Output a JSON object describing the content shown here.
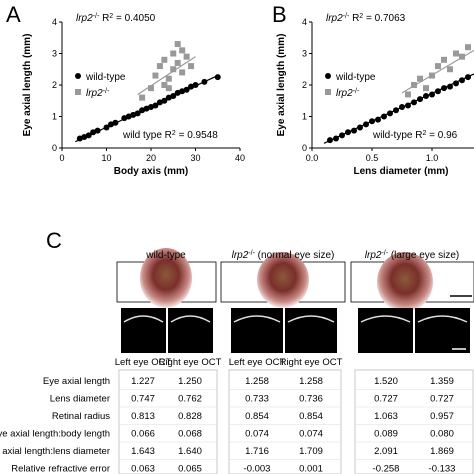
{
  "chart_data": [
    {
      "type": "scatter",
      "panel": "A",
      "xlabel": "Body axis (mm)",
      "ylabel": "Eye axial length (mm)",
      "xlim": [
        0,
        40
      ],
      "xticks": [
        0,
        10,
        20,
        30,
        40
      ],
      "ylim": [
        0,
        4
      ],
      "yticks": [
        0,
        1,
        2,
        3,
        4
      ],
      "series": [
        {
          "name": "wild-type",
          "color": "#000000",
          "marker": "circle",
          "x": [
            4,
            5,
            6,
            7,
            8,
            10,
            11,
            12,
            14,
            15,
            16,
            17,
            18,
            19,
            20,
            21,
            22,
            23,
            24,
            25,
            26,
            27,
            28,
            29,
            30,
            32,
            35
          ],
          "values": [
            0.3,
            0.35,
            0.4,
            0.5,
            0.55,
            0.65,
            0.75,
            0.8,
            0.95,
            1.0,
            1.05,
            1.1,
            1.2,
            1.25,
            1.3,
            1.35,
            1.45,
            1.5,
            1.6,
            1.65,
            1.75,
            1.8,
            1.85,
            1.95,
            2.0,
            2.1,
            2.25
          ]
        },
        {
          "name": "lrp2",
          "name_sup": "-/-",
          "color": "#999999",
          "marker": "square",
          "x": [
            18,
            20,
            21,
            22,
            23,
            23,
            24,
            25,
            25,
            26,
            26,
            27,
            27,
            28,
            29,
            24
          ],
          "values": [
            1.6,
            1.9,
            2.3,
            2.6,
            2.0,
            2.8,
            2.2,
            3.0,
            2.5,
            3.3,
            2.7,
            2.4,
            3.1,
            2.9,
            2.6,
            1.9
          ]
        }
      ],
      "trend_lines": [
        {
          "color": "#000000",
          "x": [
            3,
            35
          ],
          "y": [
            0.2,
            2.3
          ]
        },
        {
          "color": "#999999",
          "x": [
            17,
            30
          ],
          "y": [
            1.7,
            2.9
          ]
        }
      ],
      "annotations": [
        {
          "color": "#999999",
          "segments": [
            {
              "t": "lrp2",
              "italic": true
            },
            {
              "t": "-/-",
              "sup": true
            },
            {
              "t": " R"
            },
            {
              "t": "2",
              "sup": true
            },
            {
              "t": " = 0.4050"
            }
          ]
        },
        {
          "color": "#000000",
          "segments": [
            {
              "t": "wild type R"
            },
            {
              "t": "2",
              "sup": true
            },
            {
              "t": " = 0.9548"
            }
          ]
        }
      ]
    },
    {
      "type": "scatter",
      "panel": "B",
      "xlabel": "Lens diameter (mm)",
      "ylabel": "Eye axial length (mm)",
      "xlim": [
        0,
        1.35
      ],
      "xticks": [
        {
          "value": 0,
          "label": "0.0"
        },
        {
          "value": 0.5,
          "label": "0.5"
        },
        {
          "value": 1,
          "label": "1.0"
        }
      ],
      "ylim": [
        0,
        4
      ],
      "yticks": [
        0,
        1,
        2,
        3,
        4
      ],
      "series": [
        {
          "name": "wild-type",
          "color": "#000000",
          "marker": "circle",
          "x": [
            0.15,
            0.2,
            0.25,
            0.3,
            0.35,
            0.4,
            0.45,
            0.5,
            0.55,
            0.6,
            0.65,
            0.7,
            0.75,
            0.8,
            0.85,
            0.9,
            0.95,
            1.0,
            1.05,
            1.1,
            1.15,
            1.2,
            1.25,
            1.3
          ],
          "values": [
            0.25,
            0.3,
            0.4,
            0.5,
            0.55,
            0.65,
            0.75,
            0.85,
            0.9,
            1.0,
            1.1,
            1.2,
            1.3,
            1.35,
            1.45,
            1.55,
            1.65,
            1.7,
            1.8,
            1.9,
            1.95,
            2.05,
            2.15,
            2.25
          ]
        },
        {
          "name": "lrp2",
          "name_sup": "-/-",
          "color": "#999999",
          "marker": "square",
          "x": [
            0.8,
            0.85,
            0.9,
            0.95,
            1.0,
            1.05,
            1.1,
            1.15,
            1.2,
            1.25,
            1.3
          ],
          "values": [
            1.7,
            2.0,
            2.2,
            1.9,
            2.3,
            2.6,
            2.8,
            2.5,
            3.0,
            2.9,
            3.2
          ]
        }
      ],
      "trend_lines": [
        {
          "color": "#000000",
          "x": [
            0.1,
            1.35
          ],
          "y": [
            0.15,
            2.35
          ]
        },
        {
          "color": "#999999",
          "x": [
            0.75,
            1.35
          ],
          "y": [
            1.75,
            3.1
          ]
        }
      ],
      "annotations": [
        {
          "color": "#999999",
          "segments": [
            {
              "t": "lrp2",
              "italic": true
            },
            {
              "t": "-/-",
              "sup": true
            },
            {
              "t": " R"
            },
            {
              "t": "2",
              "sup": true
            },
            {
              "t": " = 0.7063"
            }
          ]
        },
        {
          "color": "#000000",
          "segments": [
            {
              "t": "wild-type R"
            },
            {
              "t": "2",
              "sup": true
            },
            {
              "t": " = 0.96"
            }
          ]
        }
      ]
    }
  ],
  "panel_c": {
    "panel": "C",
    "groups": [
      {
        "segments": [
          {
            "t": "wild-type"
          }
        ]
      },
      {
        "segments": [
          {
            "t": "lrp2",
            "italic": true
          },
          {
            "t": "-/-",
            "sup": true
          },
          {
            "t": " (normal eye size)"
          }
        ]
      },
      {
        "segments": [
          {
            "t": "lrp2",
            "italic": true
          },
          {
            "t": "-/-",
            "sup": true
          },
          {
            "t": " (large eye size)"
          }
        ]
      }
    ],
    "oct_labels": [
      "Left eye OCT",
      "Right eye OCT",
      "Left eye OCT",
      "Right eye OCT"
    ],
    "rows": [
      {
        "label": "Eye axial length",
        "values": [
          "1.227",
          "1.250",
          "1.258",
          "1.258",
          "1.520",
          "1.359"
        ]
      },
      {
        "label": "Lens diameter",
        "values": [
          "0.747",
          "0.762",
          "0.733",
          "0.736",
          "0.727",
          "0.727"
        ]
      },
      {
        "label": "Retinal radius",
        "values": [
          "0.813",
          "0.828",
          "0.854",
          "0.854",
          "1.063",
          "0.957"
        ]
      },
      {
        "label": "Eye axial length:body length",
        "values": [
          "0.066",
          "0.068",
          "0.074",
          "0.074",
          "0.089",
          "0.080"
        ]
      },
      {
        "label": "Eye axial length:lens diameter",
        "values": [
          "1.643",
          "1.640",
          "1.716",
          "1.709",
          "2.091",
          "1.869"
        ]
      },
      {
        "label": "Relative refractive error",
        "values": [
          "0.063",
          "0.065",
          "-0.003",
          "0.001",
          "-0.258",
          "-0.133"
        ]
      }
    ]
  }
}
